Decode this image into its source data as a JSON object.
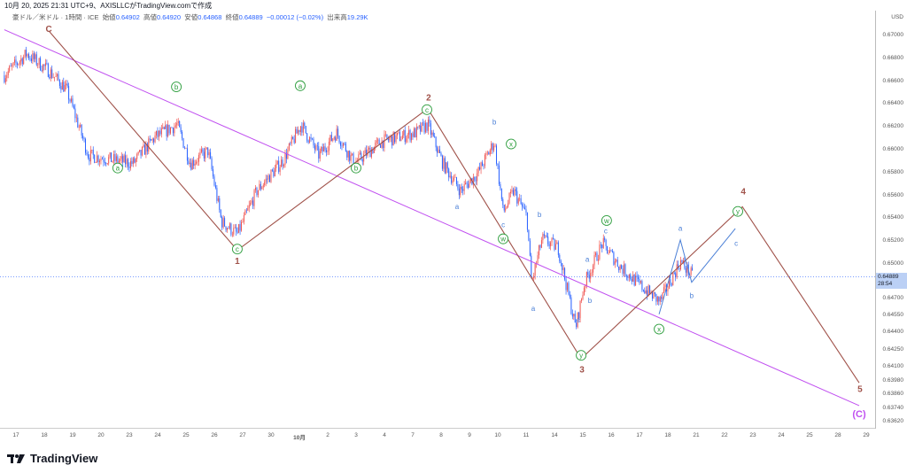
{
  "caption": "10月 20, 2025 21:31 UTC+9、AXISLLCがTradingView.comで作成",
  "legend": {
    "symbol": "豪ドル／米ドル · 1時間 · ICE",
    "open_label": "始値",
    "open": "0.64902",
    "high_label": "高値",
    "high": "0.64920",
    "low_label": "安値",
    "low": "0.64868",
    "close_label": "終値",
    "close": "0.64889",
    "change": "−0.00012 (−0.02%)",
    "volume_label": "出来高",
    "volume": "19.29K"
  },
  "axis": {
    "currency": "USD",
    "labels": [
      "0.67000",
      "0.66800",
      "0.66600",
      "0.66400",
      "0.66200",
      "0.66000",
      "0.65800",
      "0.65600",
      "0.65400",
      "0.65200",
      "0.65000",
      "0.64700",
      "0.64550",
      "0.64400",
      "0.64250",
      "0.64100",
      "0.63980",
      "0.63860",
      "0.63740",
      "0.63620"
    ],
    "current_price": "0.64889",
    "countdown": "28:54"
  },
  "dates": [
    "17",
    "18",
    "19",
    "20",
    "23",
    "24",
    "25",
    "26",
    "27",
    "30",
    "10月",
    "2",
    "3",
    "4",
    "7",
    "8",
    "9",
    "10",
    "11",
    "14",
    "15",
    "16",
    "17",
    "18",
    "21",
    "22",
    "23",
    "24",
    "25",
    "28",
    "29"
  ],
  "logo": "TradingView",
  "colors": {
    "up": "#ef5350",
    "down": "#2962ff",
    "wave": "#a0524a",
    "channel": "#c04ff0",
    "green": "#2e9e3e",
    "blue": "#4a7fd6"
  },
  "price_path": [
    [
      -0.41,
      0.6665
    ],
    [
      0.38,
      0.6684
    ],
    [
      1.16,
      0.6669
    ],
    [
      1.78,
      0.6653
    ],
    [
      2.56,
      0.6595
    ],
    [
      4.13,
      0.6588
    ],
    [
      4.91,
      0.6611
    ],
    [
      5.69,
      0.6622
    ],
    [
      6.16,
      0.6588
    ],
    [
      6.78,
      0.6599
    ],
    [
      7.25,
      0.6537
    ],
    [
      7.81,
      0.6526
    ],
    [
      8.5,
      0.6564
    ],
    [
      9.44,
      0.6591
    ],
    [
      10.06,
      0.6622
    ],
    [
      10.69,
      0.6595
    ],
    [
      11.31,
      0.6615
    ],
    [
      11.94,
      0.6588
    ],
    [
      12.88,
      0.6607
    ],
    [
      14.13,
      0.6615
    ],
    [
      14.53,
      0.6622
    ],
    [
      15.06,
      0.6588
    ],
    [
      15.69,
      0.6564
    ],
    [
      16.31,
      0.658
    ],
    [
      16.88,
      0.6607
    ],
    [
      17.19,
      0.6545
    ],
    [
      17.56,
      0.6564
    ],
    [
      18.03,
      0.6541
    ],
    [
      18.19,
      0.6483
    ],
    [
      18.56,
      0.6522
    ],
    [
      19.13,
      0.6514
    ],
    [
      19.75,
      0.6444
    ],
    [
      20.06,
      0.6483
    ],
    [
      20.69,
      0.6518
    ],
    [
      21.31,
      0.6498
    ],
    [
      21.94,
      0.6483
    ],
    [
      22.72,
      0.6467
    ],
    [
      23.44,
      0.6502
    ],
    [
      23.88,
      0.6489
    ]
  ],
  "wave_line": [
    [
      1.16,
      0.6704
    ],
    [
      7.81,
      0.6512
    ],
    [
      14.53,
      0.6636
    ],
    [
      19.94,
      0.6417
    ],
    [
      25.63,
      0.655
    ],
    [
      29.75,
      0.6396
    ]
  ],
  "channel_line": [
    [
      -0.41,
      0.6705
    ],
    [
      29.75,
      0.6376
    ]
  ],
  "blue_line": [
    [
      22.69,
      0.6456
    ],
    [
      23.44,
      0.6521
    ],
    [
      23.84,
      0.6484
    ],
    [
      25.38,
      0.6531
    ]
  ],
  "wave_labels": [
    {
      "t": "C",
      "d": 1.16,
      "p": 0.6714,
      "c": "wave"
    },
    {
      "t": "1",
      "d": 7.81,
      "p": 0.65,
      "c": "wave"
    },
    {
      "t": "2",
      "d": 14.56,
      "p": 0.6643,
      "c": "wave"
    },
    {
      "t": "3",
      "d": 19.97,
      "p": 0.6405,
      "c": "wave"
    },
    {
      "t": "4",
      "d": 25.66,
      "p": 0.6561,
      "c": "wave"
    },
    {
      "t": "5",
      "d": 29.78,
      "p": 0.6388,
      "c": "wave"
    },
    {
      "t": "(C)",
      "d": 29.75,
      "p": 0.6366,
      "c": "channel"
    }
  ],
  "circle_labels": [
    {
      "t": "a",
      "d": 3.59,
      "p": 0.6584
    },
    {
      "t": "b",
      "d": 5.66,
      "p": 0.6655
    },
    {
      "t": "c",
      "d": 7.81,
      "p": 0.6513
    },
    {
      "t": "a",
      "d": 10.03,
      "p": 0.6656
    },
    {
      "t": "b",
      "d": 12.0,
      "p": 0.6584
    },
    {
      "t": "c",
      "d": 14.5,
      "p": 0.6635
    },
    {
      "t": "x",
      "d": 17.47,
      "p": 0.6605
    },
    {
      "t": "w",
      "d": 17.19,
      "p": 0.6522
    },
    {
      "t": "y",
      "d": 19.94,
      "p": 0.642
    },
    {
      "t": "w",
      "d": 20.84,
      "p": 0.6538
    },
    {
      "t": "x",
      "d": 22.69,
      "p": 0.6443
    },
    {
      "t": "y",
      "d": 25.47,
      "p": 0.6546
    }
  ],
  "blue_labels": [
    {
      "t": "b",
      "d": 16.88,
      "p": 0.6622
    },
    {
      "t": "a",
      "d": 15.56,
      "p": 0.6548
    },
    {
      "t": "c",
      "d": 17.19,
      "p": 0.6532
    },
    {
      "t": "b",
      "d": 18.47,
      "p": 0.6541
    },
    {
      "t": "a",
      "d": 18.25,
      "p": 0.6459
    },
    {
      "t": "c",
      "d": 19.84,
      "p": 0.6449
    },
    {
      "t": "a",
      "d": 20.16,
      "p": 0.6502
    },
    {
      "t": "b",
      "d": 20.25,
      "p": 0.6466
    },
    {
      "t": "c",
      "d": 20.81,
      "p": 0.6531
    },
    {
      "t": "a",
      "d": 23.44,
      "p": 0.6529
    },
    {
      "t": "b",
      "d": 23.84,
      "p": 0.647
    },
    {
      "t": "c",
      "d": 25.41,
      "p": 0.6516
    }
  ]
}
